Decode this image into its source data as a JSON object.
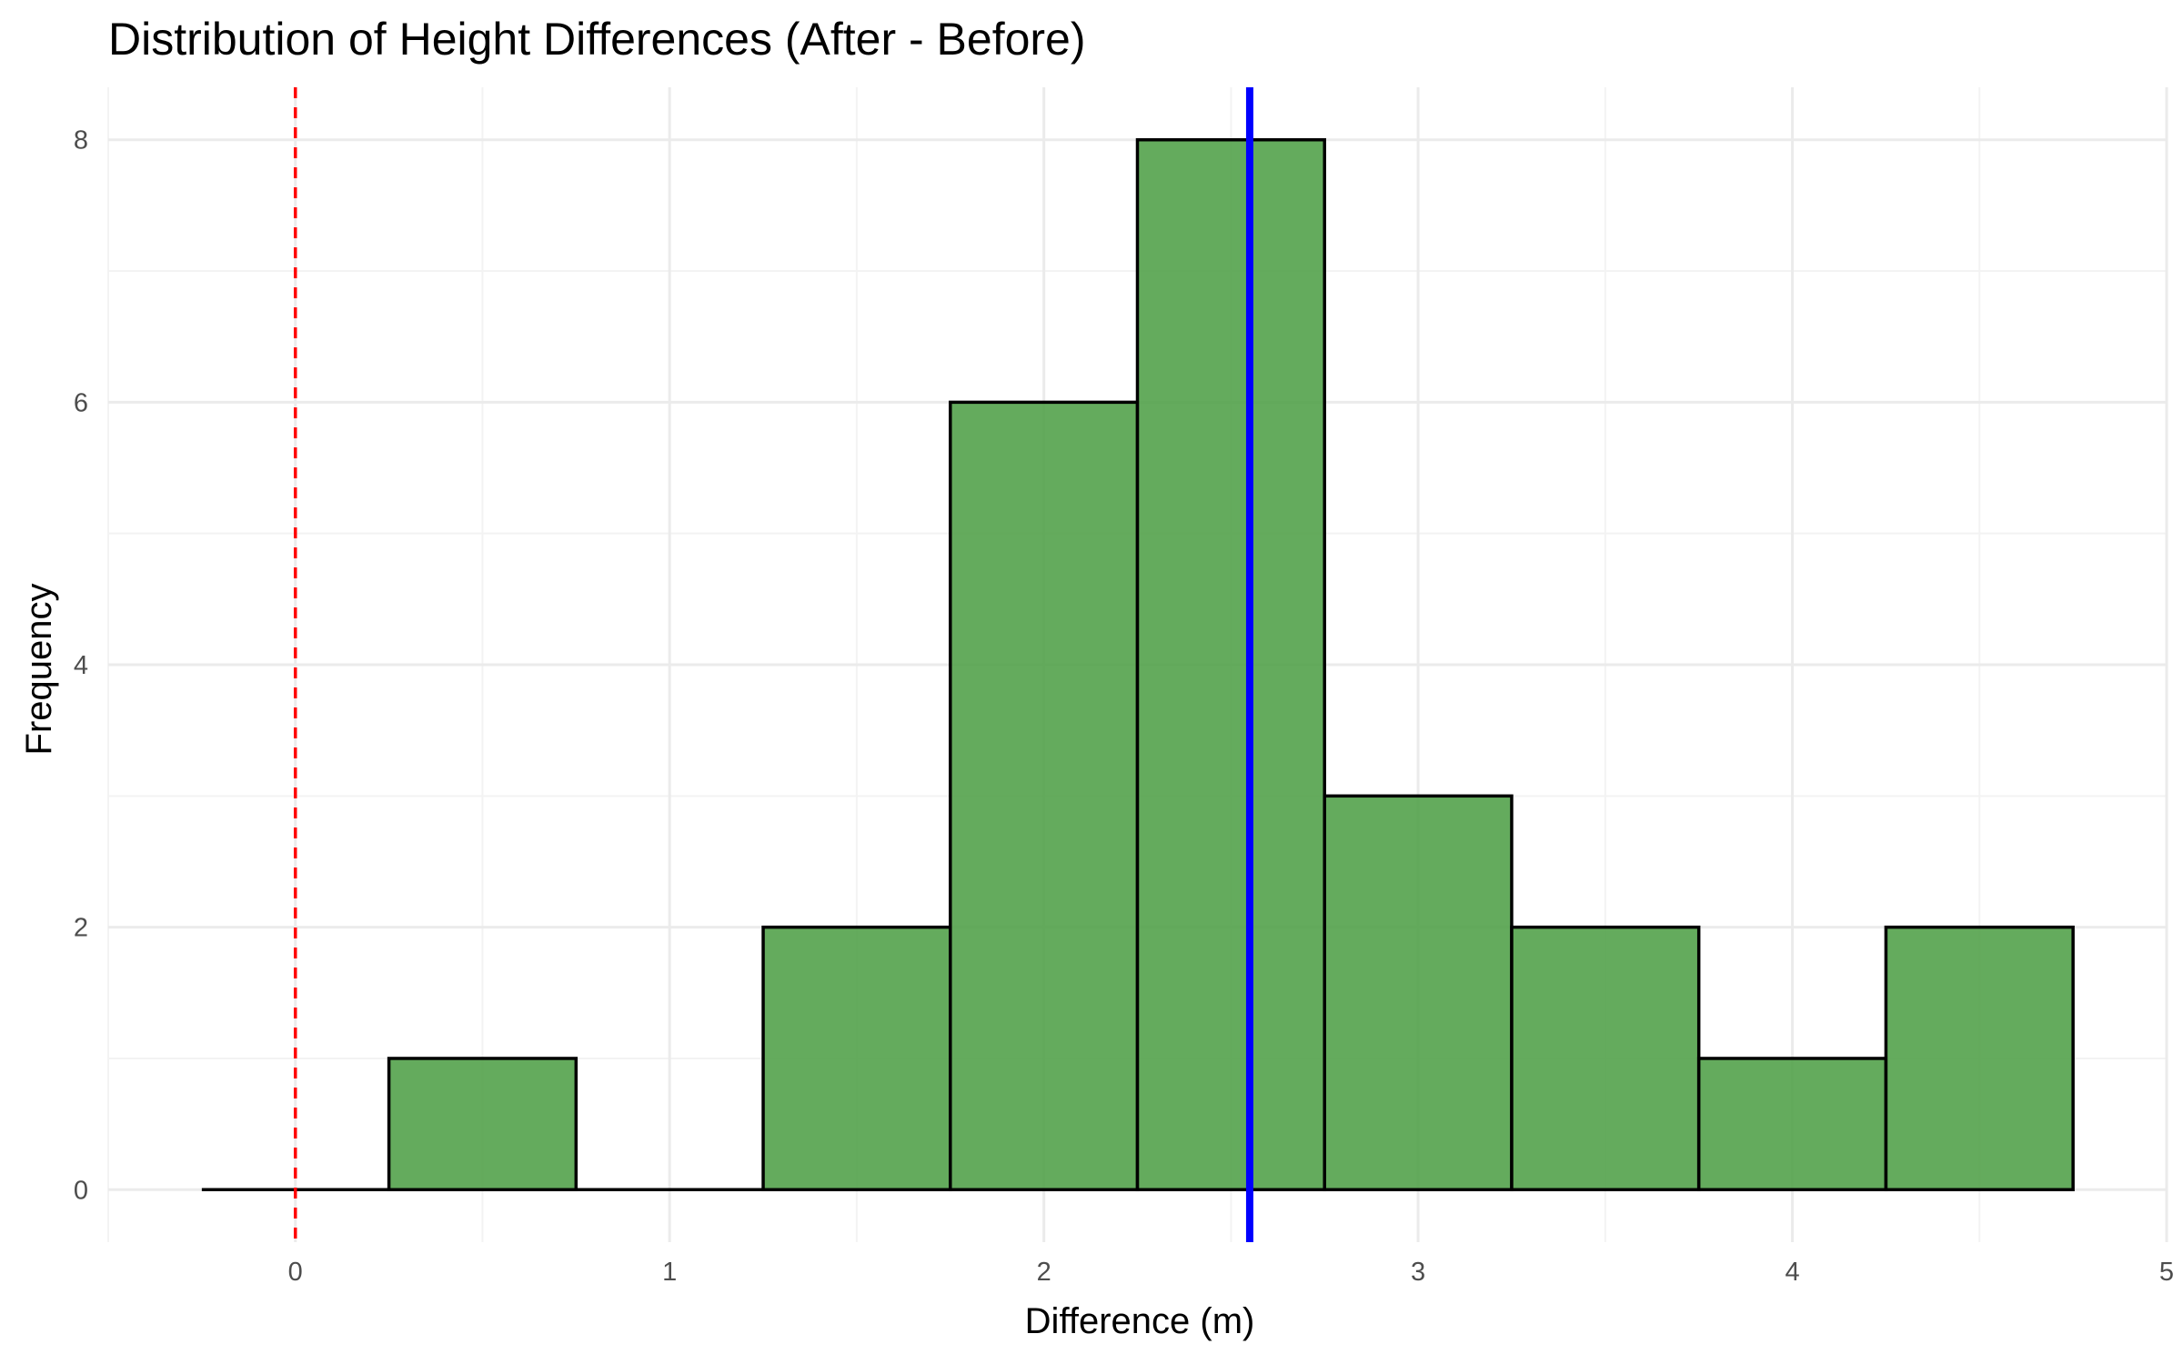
{
  "chart_data": {
    "type": "bar",
    "title": "Distribution of Height Differences (After - Before)",
    "xlabel": "Difference (m)",
    "ylabel": "Frequency",
    "bins": [
      {
        "x0": -0.25,
        "x1": 0.25,
        "count": 0
      },
      {
        "x0": 0.25,
        "x1": 0.75,
        "count": 1
      },
      {
        "x0": 0.75,
        "x1": 1.25,
        "count": 0
      },
      {
        "x0": 1.25,
        "x1": 1.75,
        "count": 2
      },
      {
        "x0": 1.75,
        "x1": 2.25,
        "count": 6
      },
      {
        "x0": 2.25,
        "x1": 2.75,
        "count": 8
      },
      {
        "x0": 2.75,
        "x1": 3.25,
        "count": 3
      },
      {
        "x0": 3.25,
        "x1": 3.75,
        "count": 2
      },
      {
        "x0": 3.75,
        "x1": 4.25,
        "count": 1
      },
      {
        "x0": 4.25,
        "x1": 4.75,
        "count": 2
      }
    ],
    "xlim": [
      -0.5,
      5.0
    ],
    "ylim": [
      -0.4,
      8.4
    ],
    "xticks": [
      0,
      1,
      2,
      3,
      4,
      5
    ],
    "yticks": [
      0,
      2,
      4,
      6,
      8
    ],
    "reference_lines": [
      {
        "x": 0,
        "style": "dashed",
        "color": "#ff0000"
      },
      {
        "x": 2.55,
        "style": "solid",
        "color": "#0000ff"
      }
    ],
    "grid": true,
    "colors": {
      "bar_fill": "#4d9e45",
      "bar_stroke": "#000000",
      "grid_major": "#ebebeb",
      "grid_minor": "#f3f3f3"
    }
  }
}
